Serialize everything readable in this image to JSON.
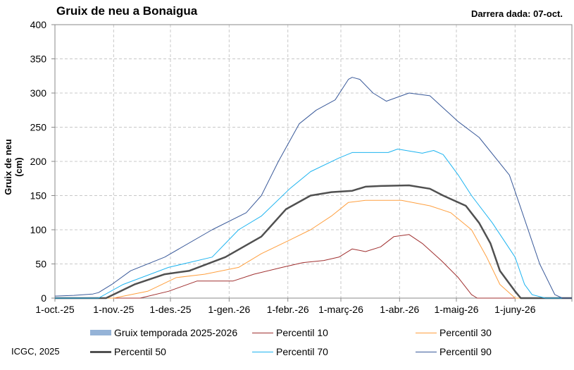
{
  "chart_data": {
    "type": "line",
    "title": "Gruix de neu a Bonaigua",
    "subtitle": "Darrera dada: 07-oct.",
    "ylabel": "Gruix de neu (cm)",
    "xlabel": "",
    "ylim": [
      0,
      400
    ],
    "yticks": [
      0,
      50,
      100,
      150,
      200,
      250,
      300,
      350,
      400
    ],
    "xlim_days": [
      0,
      273
    ],
    "xticks": [
      {
        "day": 0,
        "label": "1-oct.-25"
      },
      {
        "day": 31,
        "label": "1-nov.-25"
      },
      {
        "day": 61,
        "label": "1-des.-25"
      },
      {
        "day": 92,
        "label": "1-gen.-26"
      },
      {
        "day": 123,
        "label": "1-febr.-26"
      },
      {
        "day": 151,
        "label": "1-març-26"
      },
      {
        "day": 182,
        "label": "1-abr.-26"
      },
      {
        "day": 212,
        "label": "1-maig-26"
      },
      {
        "day": 243,
        "label": "1-juny-26"
      }
    ],
    "grid": true,
    "legend_position": "bottom",
    "series": [
      {
        "name": "Gruix temporada 2025-2026",
        "color": "#95B3D7",
        "kind": "area",
        "points": [
          [
            0,
            1
          ],
          [
            3,
            1
          ],
          [
            6,
            1
          ]
        ]
      },
      {
        "name": "Percentil 10",
        "color": "#A03030",
        "width": 1,
        "points": [
          [
            0,
            0
          ],
          [
            45,
            0
          ],
          [
            60,
            10
          ],
          [
            75,
            25
          ],
          [
            94,
            25
          ],
          [
            105,
            35
          ],
          [
            120,
            45
          ],
          [
            131,
            52
          ],
          [
            142,
            55
          ],
          [
            150,
            60
          ],
          [
            157,
            72
          ],
          [
            164,
            68
          ],
          [
            172,
            75
          ],
          [
            179,
            90
          ],
          [
            187,
            93
          ],
          [
            194,
            80
          ],
          [
            204,
            55
          ],
          [
            213,
            30
          ],
          [
            220,
            5
          ],
          [
            223,
            0
          ],
          [
            273,
            0
          ]
        ]
      },
      {
        "name": "Percentil 30",
        "color": "#FFA040",
        "width": 1,
        "points": [
          [
            0,
            0
          ],
          [
            31,
            0
          ],
          [
            49,
            10
          ],
          [
            64,
            30
          ],
          [
            79,
            35
          ],
          [
            97,
            45
          ],
          [
            109,
            65
          ],
          [
            124,
            85
          ],
          [
            135,
            100
          ],
          [
            146,
            120
          ],
          [
            155,
            140
          ],
          [
            164,
            143
          ],
          [
            183,
            143
          ],
          [
            198,
            135
          ],
          [
            209,
            125
          ],
          [
            220,
            100
          ],
          [
            228,
            60
          ],
          [
            235,
            20
          ],
          [
            241,
            5
          ],
          [
            243,
            0
          ],
          [
            273,
            0
          ]
        ]
      },
      {
        "name": "Percentil 50",
        "color": "#505050",
        "width": 2.5,
        "points": [
          [
            0,
            0
          ],
          [
            27,
            0
          ],
          [
            42,
            20
          ],
          [
            58,
            35
          ],
          [
            71,
            40
          ],
          [
            90,
            60
          ],
          [
            109,
            90
          ],
          [
            122,
            130
          ],
          [
            135,
            150
          ],
          [
            146,
            155
          ],
          [
            157,
            157
          ],
          [
            164,
            163
          ],
          [
            172,
            164
          ],
          [
            187,
            165
          ],
          [
            198,
            160
          ],
          [
            205,
            150
          ],
          [
            217,
            135
          ],
          [
            224,
            110
          ],
          [
            230,
            80
          ],
          [
            235,
            40
          ],
          [
            243,
            10
          ],
          [
            246,
            0
          ],
          [
            273,
            0
          ]
        ]
      },
      {
        "name": "Percentil 70",
        "color": "#1EB4F0",
        "width": 1,
        "points": [
          [
            0,
            0
          ],
          [
            23,
            0
          ],
          [
            36,
            20
          ],
          [
            60,
            45
          ],
          [
            83,
            60
          ],
          [
            97,
            100
          ],
          [
            109,
            120
          ],
          [
            124,
            160
          ],
          [
            135,
            185
          ],
          [
            150,
            205
          ],
          [
            157,
            213
          ],
          [
            176,
            213
          ],
          [
            181,
            218
          ],
          [
            194,
            212
          ],
          [
            200,
            216
          ],
          [
            205,
            210
          ],
          [
            213,
            180
          ],
          [
            220,
            150
          ],
          [
            231,
            110
          ],
          [
            243,
            60
          ],
          [
            248,
            20
          ],
          [
            252,
            5
          ],
          [
            259,
            0
          ],
          [
            273,
            0
          ]
        ]
      },
      {
        "name": "Percentil 90",
        "color": "#3A5A9A",
        "width": 1,
        "points": [
          [
            0,
            3
          ],
          [
            10,
            4
          ],
          [
            20,
            6
          ],
          [
            23,
            8
          ],
          [
            30,
            20
          ],
          [
            40,
            40
          ],
          [
            58,
            60
          ],
          [
            83,
            100
          ],
          [
            101,
            125
          ],
          [
            109,
            150
          ],
          [
            118,
            200
          ],
          [
            129,
            255
          ],
          [
            138,
            275
          ],
          [
            148,
            290
          ],
          [
            155,
            320
          ],
          [
            157,
            323
          ],
          [
            161,
            320
          ],
          [
            168,
            300
          ],
          [
            175,
            288
          ],
          [
            187,
            300
          ],
          [
            198,
            296
          ],
          [
            213,
            258
          ],
          [
            224,
            235
          ],
          [
            240,
            180
          ],
          [
            245,
            140
          ],
          [
            256,
            50
          ],
          [
            264,
            5
          ],
          [
            268,
            0
          ],
          [
            273,
            0
          ]
        ]
      }
    ]
  },
  "credit": "ICGC, 2025"
}
